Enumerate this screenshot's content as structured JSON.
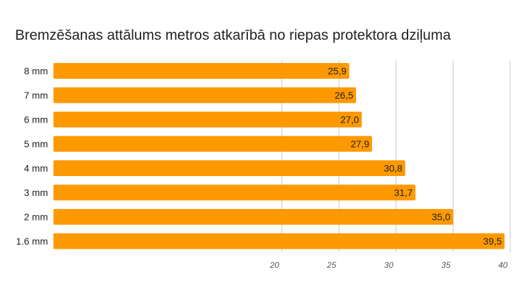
{
  "chart_data": {
    "type": "bar",
    "orientation": "horizontal",
    "title": "Bremzēšanas attālums metros atkarībā no riepas protektora dziļuma",
    "categories": [
      "8 mm",
      "7 mm",
      "6 mm",
      "5 mm",
      "4 mm",
      "3 mm",
      "2 mm",
      "1.6 mm"
    ],
    "values": [
      25.9,
      26.5,
      27.0,
      27.9,
      30.8,
      31.7,
      35.0,
      39.5
    ],
    "value_labels": [
      "25,9",
      "26,5",
      "27,0",
      "27,9",
      "30,8",
      "31,7",
      "35,0",
      "39,5"
    ],
    "xticks": [
      20,
      25,
      30,
      35,
      40
    ],
    "xlim": [
      0,
      40
    ],
    "grid": "vertical gridlines at 20, 25, 30, 35, 40",
    "xlabel": "",
    "ylabel": "",
    "legend": "none",
    "bar_color": "#fe9900",
    "grid_color": "#c8c8c8"
  }
}
